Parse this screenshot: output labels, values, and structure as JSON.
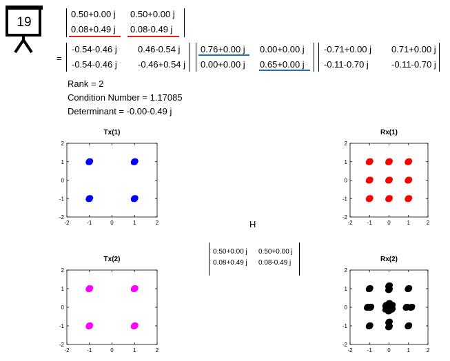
{
  "slide_number": "19",
  "equation": {
    "top_matrix": {
      "rows": [
        [
          "0.50+0.00 j",
          "0.50+0.00 j"
        ],
        [
          "0.08+0.49 j",
          "0.08-0.49 j"
        ]
      ]
    },
    "equals": "=",
    "U": {
      "rows": [
        [
          "-0.54-0.46 j",
          "0.46-0.54 j"
        ],
        [
          "-0.54-0.46 j",
          "-0.46+0.54 j"
        ]
      ]
    },
    "S": {
      "rows": [
        [
          "0.76+0.00 j",
          "0.00+0.00 j"
        ],
        [
          "0.00+0.00 j",
          "0.65+0.00 j"
        ]
      ]
    },
    "V": {
      "rows": [
        [
          "-0.71+0.00 j",
          "0.71+0.00 j"
        ],
        [
          "-0.11-0.70 j",
          "-0.11-0.70 j"
        ]
      ]
    }
  },
  "info": {
    "rank": "Rank = 2",
    "condition": "Condition Number = 1.17085",
    "determinant": "Determinant = -0.00-0.49 j"
  },
  "h_label": "H",
  "h_matrix": {
    "rows": [
      [
        "0.50+0.00 j",
        "0.50+0.00 j"
      ],
      [
        "0.08+0.49 j",
        "0.08-0.49 j"
      ]
    ]
  },
  "colors": {
    "blue": "#0000ff",
    "red": "#ff0000",
    "magenta": "#ff00ff",
    "black": "#000000",
    "underline_red": "#e0201c",
    "underline_blue": "#1f6fc2"
  },
  "chart_data": [
    {
      "type": "scatter",
      "title": "Tx(1)",
      "color": "#0000ff",
      "xlim": [
        -2,
        2
      ],
      "ylim": [
        -2,
        2
      ],
      "xticks": [
        "-2",
        "-1",
        "0",
        "1",
        "2"
      ],
      "yticks": [
        "2",
        "1",
        "0",
        "-1",
        "-2"
      ],
      "points": [
        [
          -1,
          1
        ],
        [
          1,
          1
        ],
        [
          -1,
          -1
        ],
        [
          1,
          -1
        ]
      ]
    },
    {
      "type": "scatter",
      "title": "Rx(1)",
      "color": "#ff0000",
      "xlim": [
        -2,
        2
      ],
      "ylim": [
        -2,
        2
      ],
      "xticks": [
        "-2",
        "-1",
        "0",
        "1",
        "2"
      ],
      "yticks": [
        "2",
        "1",
        "0",
        "-1",
        "-2"
      ],
      "points": [
        [
          -1,
          1
        ],
        [
          0,
          1
        ],
        [
          1,
          1
        ],
        [
          -1,
          0
        ],
        [
          0,
          0
        ],
        [
          1,
          0
        ],
        [
          -1,
          -1
        ],
        [
          0,
          -1
        ],
        [
          1,
          -1
        ]
      ]
    },
    {
      "type": "scatter",
      "title": "Tx(2)",
      "color": "#ff00ff",
      "xlim": [
        -2,
        2
      ],
      "ylim": [
        -2,
        2
      ],
      "xticks": [
        "-2",
        "-1",
        "0",
        "1",
        "2"
      ],
      "yticks": [
        "2",
        "1",
        "0",
        "-1",
        "-2"
      ],
      "points": [
        [
          -1,
          1
        ],
        [
          1,
          1
        ],
        [
          -1,
          -1
        ],
        [
          1,
          -1
        ]
      ]
    },
    {
      "type": "scatter",
      "title": "Rx(2)",
      "color": "#000000",
      "xlim": [
        -2,
        2
      ],
      "ylim": [
        -2,
        2
      ],
      "xticks": [
        "-2",
        "-1",
        "0",
        "1",
        "2"
      ],
      "yticks": [
        "2",
        "1",
        "0",
        "-1",
        "-2"
      ],
      "points": [
        [
          -1,
          1
        ],
        [
          0,
          1.15
        ],
        [
          0,
          0.95
        ],
        [
          1,
          1
        ],
        [
          -1.1,
          0
        ],
        [
          -0.95,
          0
        ],
        [
          -0.15,
          0.1
        ],
        [
          0.15,
          0.1
        ],
        [
          0,
          0.2
        ],
        [
          -0.15,
          -0.1
        ],
        [
          0.15,
          -0.1
        ],
        [
          0,
          -0.2
        ],
        [
          0.9,
          0
        ],
        [
          1.15,
          0
        ],
        [
          -1,
          -1
        ],
        [
          0,
          -0.8
        ],
        [
          0,
          -1.05
        ],
        [
          1,
          -1
        ]
      ]
    }
  ]
}
